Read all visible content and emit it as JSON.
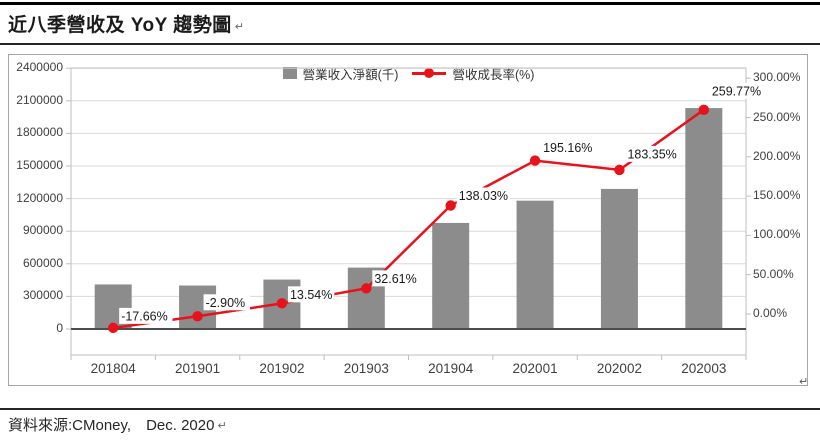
{
  "page": {
    "title": "近八季營收及 YoY 趨勢圖",
    "paragraph_mark": "↵",
    "source_text": "資料來源:CMoney,　Dec. 2020"
  },
  "legend": {
    "bar_label": "營業收入淨額(千)",
    "line_label": "營收成長率(%)"
  },
  "colors": {
    "bar": "#8c8c8c",
    "line": "#e8121a",
    "gridline": "#d9d9d9",
    "plot_border": "#bfbfbf",
    "baseline": "#4d4d4d",
    "tick_text": "#404040",
    "label_text": "#1a1a1a"
  },
  "chart_data": {
    "type": "bar",
    "subtype": "combo bar+line, dual axis",
    "title": "近八季營收及 YoY 趨勢圖",
    "categories": [
      "201804",
      "201901",
      "201902",
      "201903",
      "201904",
      "202001",
      "202002",
      "202003"
    ],
    "series": [
      {
        "name": "營業收入淨額(千)",
        "type": "bar",
        "axis": "left",
        "values": [
          410000,
          400000,
          455000,
          565000,
          976000,
          1181000,
          1289000,
          2033000
        ],
        "note": "bar heights estimated from gridlines"
      },
      {
        "name": "營收成長率(%)",
        "type": "line",
        "axis": "right",
        "values": [
          -17.66,
          -2.9,
          13.54,
          32.61,
          138.03,
          195.16,
          183.35,
          259.77
        ],
        "labels": [
          "-17.66%",
          "-2.90%",
          "13.54%",
          "32.61%",
          "138.03%",
          "195.16%",
          "183.35%",
          "259.77%"
        ]
      }
    ],
    "left_axis": {
      "ticks": [
        "0",
        "300000",
        "600000",
        "900000",
        "1200000",
        "1500000",
        "1800000",
        "2100000",
        "2400000"
      ],
      "min": 0,
      "max": 2400000
    },
    "right_axis": {
      "ticks": [
        "0.00%",
        "50.00%",
        "100.00%",
        "150.00%",
        "200.00%",
        "250.00%",
        "300.00%"
      ],
      "unit": "%"
    },
    "grid": "horizontal gridlines at left-axis ticks",
    "legend_position": "top-center"
  }
}
